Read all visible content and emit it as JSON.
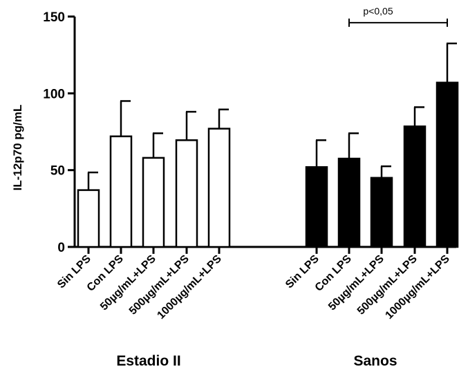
{
  "chart_data": {
    "type": "bar",
    "ylabel": "IL-12p70 pg/mL",
    "ylim": [
      0,
      150
    ],
    "yticks": [
      "0",
      "50",
      "100",
      "150"
    ],
    "ytick_values": [
      0,
      50,
      100,
      150
    ],
    "categories": [
      "Sin LPS",
      "Con LPS",
      "50µg/mL+LPS",
      "500µg/mL+LPS",
      "1000µg/mL+LPS"
    ],
    "groups": [
      {
        "name": "Estadio II",
        "fill": "#ffffff",
        "values": [
          37,
          72,
          58,
          69.5,
          77
        ],
        "error_upper": [
          48.5,
          95,
          74,
          88,
          89.5
        ]
      },
      {
        "name": "Sanos",
        "fill": "#000000",
        "values": [
          52,
          57.5,
          45,
          78.5,
          107
        ],
        "error_upper": [
          69.5,
          74,
          52.5,
          91,
          132.5
        ]
      }
    ],
    "annotation": {
      "text": "p<0,05",
      "from": "Sanos Con LPS",
      "to": "Sanos 1000µg/mL+LPS",
      "y": 146
    },
    "grid": false,
    "legend": "none"
  }
}
